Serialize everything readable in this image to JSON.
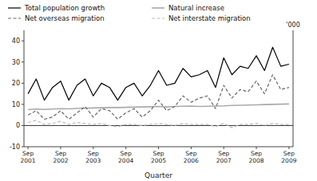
{
  "chart_data": {
    "type": "line",
    "xlabel": "Quarter",
    "ylabel": "'000",
    "categories": [
      "Sep\n2001",
      null,
      null,
      null,
      "Sep\n2002",
      null,
      null,
      null,
      "Sep\n2003",
      null,
      null,
      null,
      "Sep\n2004",
      null,
      null,
      null,
      "Sep\n2005",
      null,
      null,
      null,
      "Sep\n2006",
      null,
      null,
      null,
      "Sep\n2007",
      null,
      null,
      null,
      "Sep\n2008",
      null,
      null,
      null,
      "Sep\n2009"
    ],
    "series": [
      {
        "name": "Total population growth",
        "color": "#000000",
        "line_style": "solid",
        "values": [
          15,
          22,
          12,
          18,
          21,
          12,
          19,
          22,
          14,
          20,
          18,
          12,
          18,
          20,
          14,
          19,
          26,
          19,
          20,
          27,
          23,
          24,
          26,
          18,
          32,
          24,
          28,
          27,
          33,
          26,
          37,
          28,
          29
        ]
      },
      {
        "name": "Natural increase",
        "color": "#aaaaaa",
        "line_style": "solid",
        "values": [
          7.5,
          7.8,
          7.6,
          7.8,
          8.0,
          7.9,
          8.1,
          8.2,
          8.3,
          8.4,
          8.5,
          8.5,
          8.6,
          8.7,
          8.8,
          8.9,
          9.0,
          8.8,
          9.0,
          9.1,
          9.2,
          9.0,
          9.1,
          9.2,
          9.3,
          9.5,
          9.6,
          9.7,
          9.8,
          9.9,
          10.0,
          10.1,
          10.2
        ]
      },
      {
        "name": "Net overseas migration",
        "color": "#666666",
        "line_style": "dashed",
        "values": [
          5,
          7,
          3,
          4,
          7,
          3,
          6,
          9,
          4,
          8,
          7,
          3,
          6,
          8,
          4,
          7,
          12,
          7,
          9,
          14,
          11,
          13,
          14,
          8,
          19,
          13,
          17,
          16,
          21,
          15,
          24,
          17,
          18
        ]
      },
      {
        "name": "Net interstate migration",
        "color": "#bbbbbb",
        "line_style": "dashed",
        "values": [
          1.5,
          2.5,
          0.5,
          1.0,
          2.0,
          0.5,
          1.5,
          1.0,
          0.5,
          1.0,
          0.0,
          -0.5,
          0.5,
          0.5,
          0.0,
          0.5,
          1.0,
          0.5,
          0.0,
          1.0,
          0.5,
          0.5,
          0.5,
          -0.5,
          1.0,
          -1.0,
          0.5,
          0.5,
          1.0,
          0.0,
          1.0,
          0.5,
          0.5
        ]
      }
    ],
    "ylim": [
      -10,
      45
    ],
    "yticks": [
      -10,
      0,
      10,
      20,
      30,
      40
    ],
    "grid": false,
    "legend": "top"
  }
}
